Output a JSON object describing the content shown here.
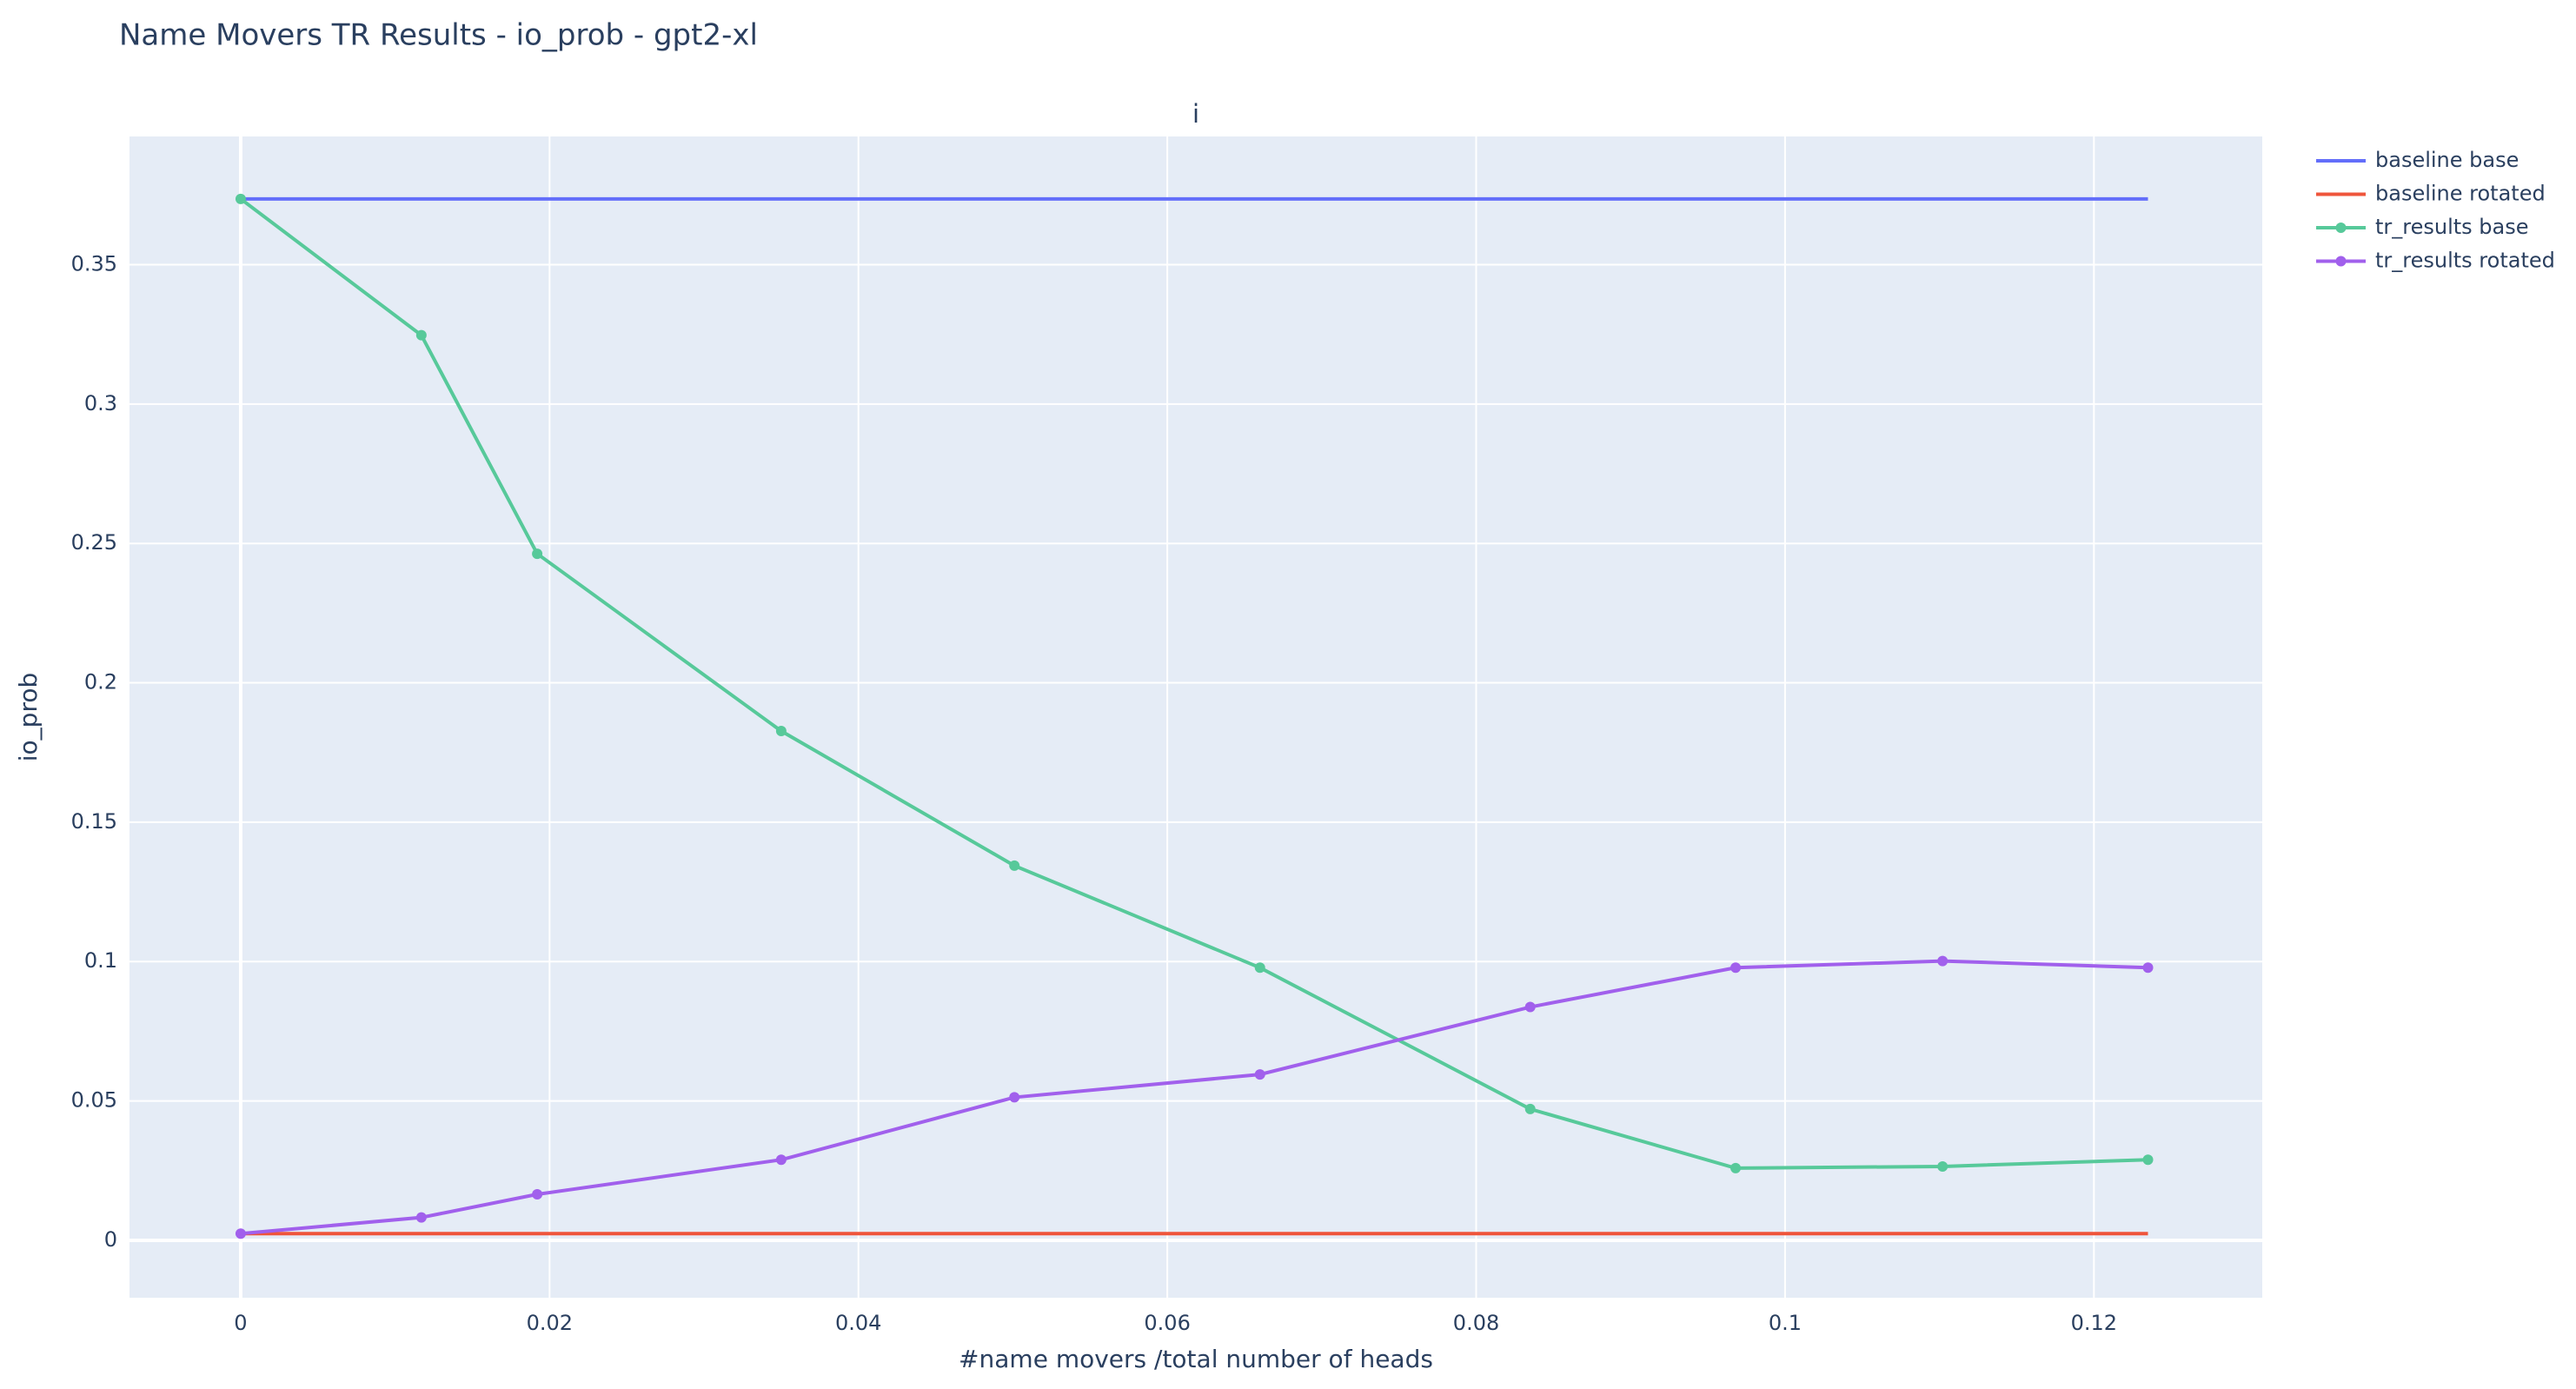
{
  "chart_data": {
    "type": "line",
    "title": "Name Movers TR Results - io_prob - gpt2-xl",
    "subplot_title": "i",
    "x_label": "#name movers /total number of heads",
    "y_label": "io_prob",
    "xlim": [
      -0.0072,
      0.1309
    ],
    "ylim": [
      -0.0206,
      0.396
    ],
    "xticks": [
      0,
      0.02,
      0.04,
      0.06,
      0.08,
      0.1,
      0.12
    ],
    "yticks": [
      0,
      0.05,
      0.1,
      0.15,
      0.2,
      0.25,
      0.3,
      0.35
    ],
    "grid": true,
    "legend": "right",
    "series": [
      {
        "name": "baseline base",
        "color": "#636efa",
        "markers": false,
        "x": [
          0,
          0.1235
        ],
        "values": [
          0.3736,
          0.3736
        ]
      },
      {
        "name": "baseline rotated",
        "color": "#ef553b",
        "markers": false,
        "x": [
          0,
          0.1235
        ],
        "values": [
          0.0024,
          0.0024
        ]
      },
      {
        "name": "tr_results base",
        "color": "#57c99a",
        "markers": true,
        "x": [
          0,
          0.0117,
          0.0192,
          0.035,
          0.0501,
          0.066,
          0.0835,
          0.0968,
          0.1102,
          0.1235
        ],
        "values": [
          0.3736,
          0.3247,
          0.2463,
          0.1827,
          0.1344,
          0.0978,
          0.0471,
          0.0259,
          0.0265,
          0.0289
        ]
      },
      {
        "name": "tr_results rotated",
        "color": "#a160ec",
        "markers": true,
        "x": [
          0,
          0.0117,
          0.0192,
          0.035,
          0.0501,
          0.066,
          0.0835,
          0.0968,
          0.1102,
          0.1235
        ],
        "values": [
          0.0024,
          0.0082,
          0.0165,
          0.0289,
          0.0513,
          0.0595,
          0.0837,
          0.0978,
          0.1002,
          0.0978
        ]
      }
    ]
  }
}
